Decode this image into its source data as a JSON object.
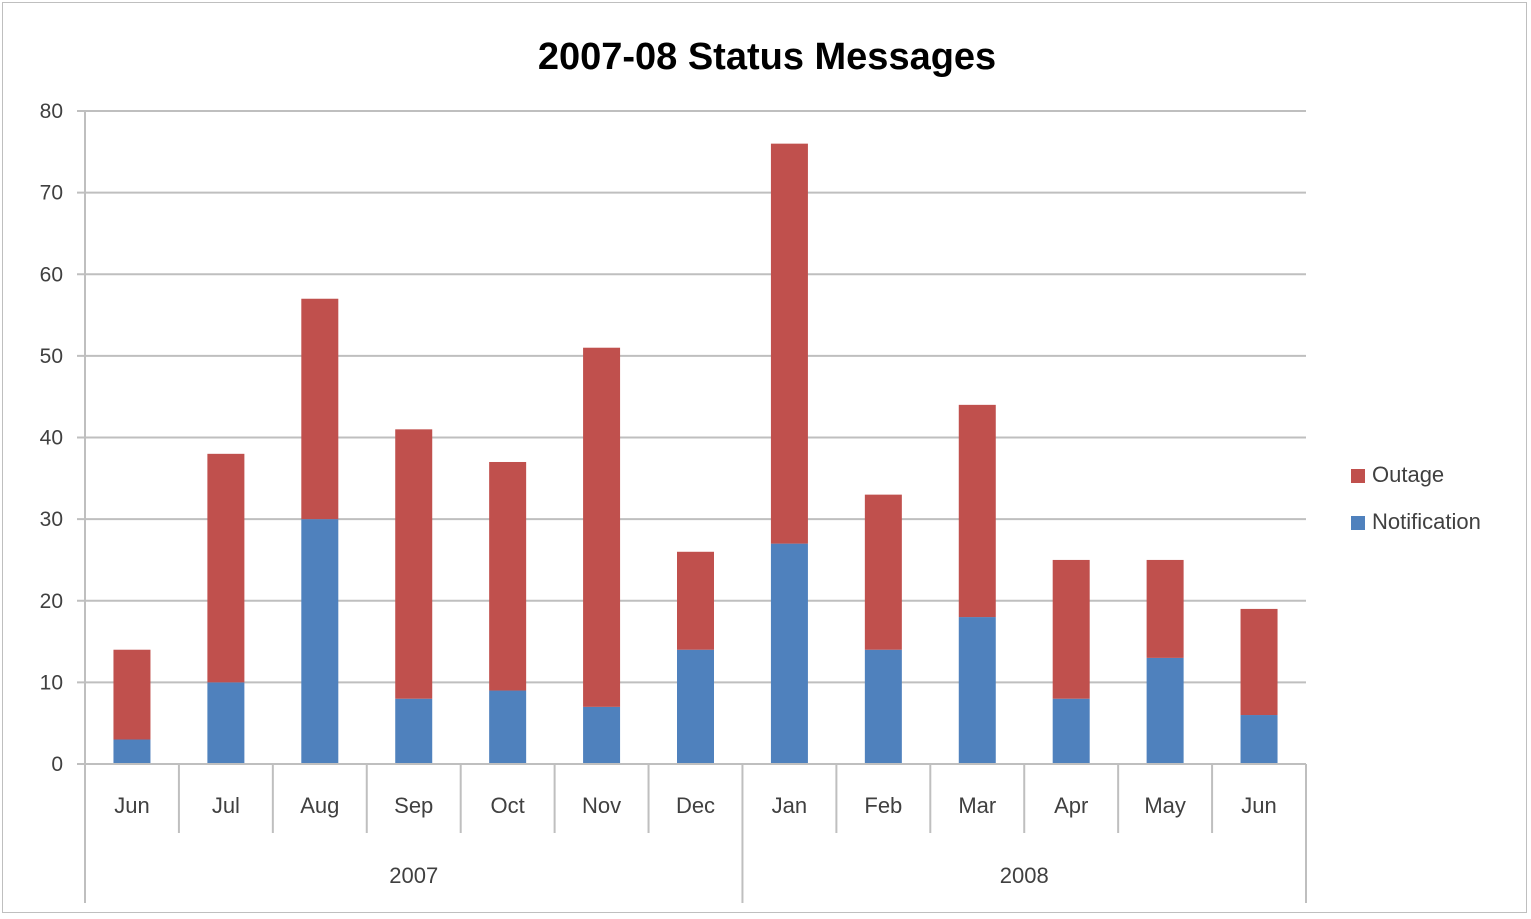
{
  "chart_data": {
    "type": "bar",
    "stacked": true,
    "title": "2007-08 Status Messages",
    "xlabel": "",
    "ylabel": "",
    "ylim": [
      0,
      80
    ],
    "y_ticks": [
      0,
      10,
      20,
      30,
      40,
      50,
      60,
      70,
      80
    ],
    "grid": true,
    "legend_position": "right",
    "categories": [
      "Jun",
      "Jul",
      "Aug",
      "Sep",
      "Oct",
      "Nov",
      "Dec",
      "Jan",
      "Feb",
      "Mar",
      "Apr",
      "May",
      "Jun"
    ],
    "groups": [
      {
        "label": "2007",
        "count": 7
      },
      {
        "label": "2008",
        "count": 6
      }
    ],
    "series": [
      {
        "name": "Notification",
        "color": "#4f81bd",
        "values": [
          3,
          10,
          30,
          8,
          9,
          7,
          14,
          27,
          14,
          18,
          8,
          13,
          6
        ]
      },
      {
        "name": "Outage",
        "color": "#c0504d",
        "values": [
          11,
          28,
          27,
          33,
          28,
          44,
          12,
          49,
          19,
          26,
          17,
          12,
          13
        ]
      }
    ],
    "legend_order": [
      "Outage",
      "Notification"
    ]
  }
}
